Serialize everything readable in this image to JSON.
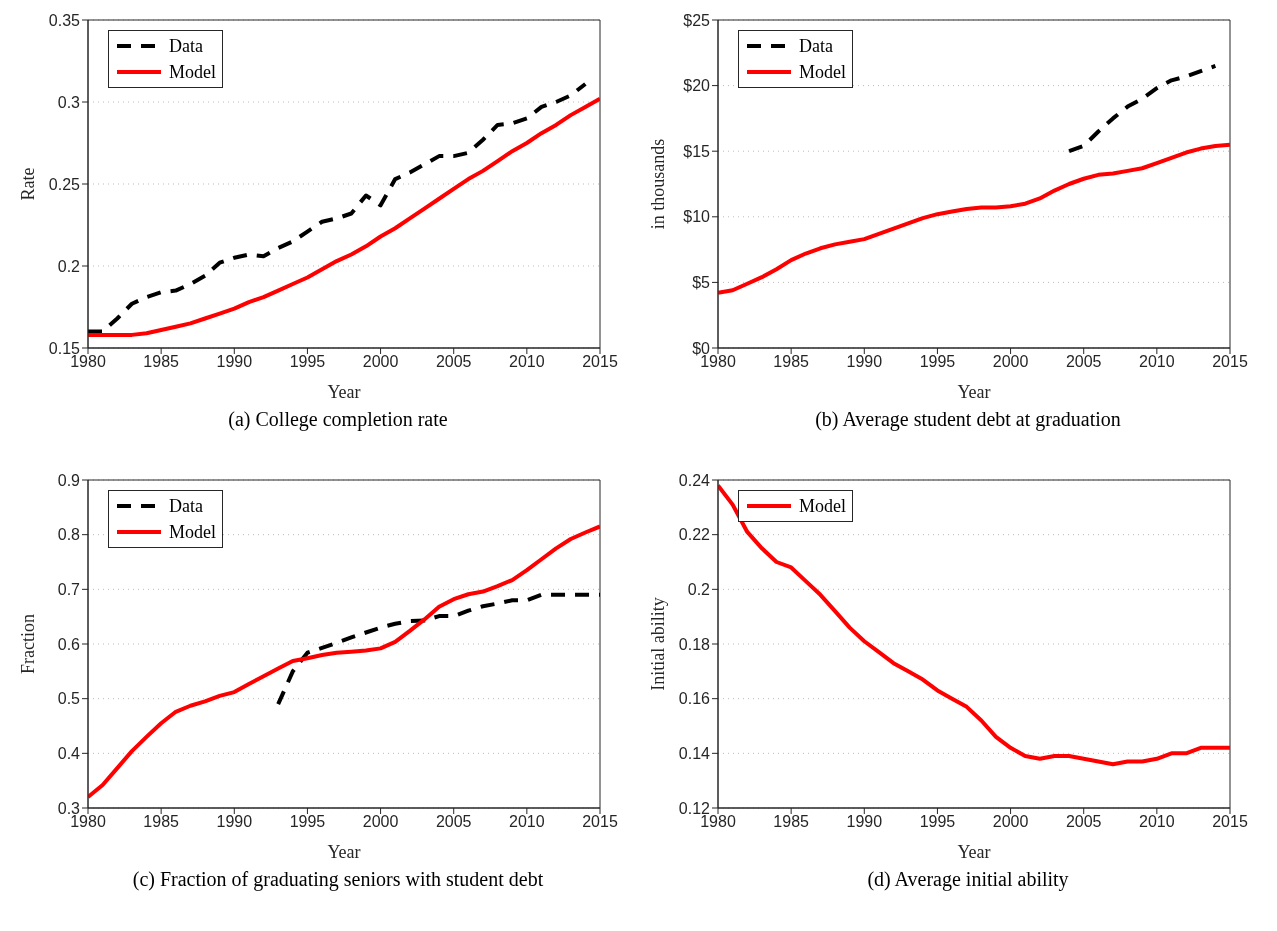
{
  "chart_data": [
    {
      "type": "line",
      "title": "(a) College completion rate",
      "xlabel": "Year",
      "ylabel": "Rate",
      "xlim": [
        1980,
        2015
      ],
      "xticks": [
        1980,
        1985,
        1990,
        1995,
        2000,
        2005,
        2010,
        2015
      ],
      "ylim": [
        0.15,
        0.35
      ],
      "yticks": [
        0.15,
        0.2,
        0.25,
        0.3,
        0.35
      ],
      "grid": "y",
      "legend": "top left",
      "series": [
        {
          "name": "Data",
          "color": "#000000",
          "line_style": "dashed",
          "x": [
            1980,
            1981,
            1982,
            1983,
            1984,
            1985,
            1986,
            1987,
            1988,
            1989,
            1990,
            1991,
            1992,
            1993,
            1994,
            1995,
            1996,
            1997,
            1998,
            1999,
            2000,
            2001,
            2002,
            2003,
            2004,
            2005,
            2006,
            2007,
            2008,
            2009,
            2010,
            2011,
            2012,
            2013,
            2014
          ],
          "values": [
            0.16,
            0.16,
            0.168,
            0.177,
            0.181,
            0.184,
            0.185,
            0.189,
            0.194,
            0.202,
            0.205,
            0.207,
            0.206,
            0.211,
            0.215,
            0.221,
            0.227,
            0.229,
            0.232,
            0.243,
            0.237,
            0.253,
            0.257,
            0.262,
            0.267,
            0.267,
            0.269,
            0.277,
            0.286,
            0.287,
            0.29,
            0.297,
            0.3,
            0.304,
            0.311
          ]
        },
        {
          "name": "Model",
          "color": "#ff0000",
          "line_style": "solid",
          "x": [
            1980,
            1981,
            1982,
            1983,
            1984,
            1985,
            1986,
            1987,
            1988,
            1989,
            1990,
            1991,
            1992,
            1993,
            1994,
            1995,
            1996,
            1997,
            1998,
            1999,
            2000,
            2001,
            2002,
            2003,
            2004,
            2005,
            2006,
            2007,
            2008,
            2009,
            2010,
            2011,
            2012,
            2013,
            2014,
            2015
          ],
          "values": [
            0.158,
            0.158,
            0.158,
            0.158,
            0.159,
            0.161,
            0.163,
            0.165,
            0.168,
            0.171,
            0.174,
            0.178,
            0.181,
            0.185,
            0.189,
            0.193,
            0.198,
            0.203,
            0.207,
            0.212,
            0.218,
            0.223,
            0.229,
            0.235,
            0.241,
            0.247,
            0.253,
            0.258,
            0.264,
            0.27,
            0.275,
            0.281,
            0.286,
            0.292,
            0.297,
            0.302
          ]
        }
      ]
    },
    {
      "type": "line",
      "title": "(b) Average student debt at graduation",
      "xlabel": "Year",
      "ylabel": "in thousands",
      "xlim": [
        1980,
        2015
      ],
      "xticks": [
        1980,
        1985,
        1990,
        1995,
        2000,
        2005,
        2010,
        2015
      ],
      "ylim": [
        0,
        25
      ],
      "yticks": [
        {
          "value": 0,
          "label": "$0"
        },
        {
          "value": 5,
          "label": "$5"
        },
        {
          "value": 10,
          "label": "$10"
        },
        {
          "value": 15,
          "label": "$15"
        },
        {
          "value": 20,
          "label": "$20"
        },
        {
          "value": 25,
          "label": "$25"
        }
      ],
      "grid": "y",
      "legend": "top left",
      "series": [
        {
          "name": "Data",
          "color": "#000000",
          "line_style": "dashed",
          "x": [
            2004,
            2005,
            2006,
            2007,
            2008,
            2009,
            2010,
            2011,
            2012,
            2013,
            2014
          ],
          "values": [
            15.0,
            15.4,
            16.5,
            17.5,
            18.4,
            19.0,
            19.8,
            20.4,
            20.7,
            21.1,
            21.5
          ]
        },
        {
          "name": "Model",
          "color": "#ff0000",
          "line_style": "solid",
          "x": [
            1980,
            1981,
            1982,
            1983,
            1984,
            1985,
            1986,
            1987,
            1988,
            1989,
            1990,
            1991,
            1992,
            1993,
            1994,
            1995,
            1996,
            1997,
            1998,
            1999,
            2000,
            2001,
            2002,
            2003,
            2004,
            2005,
            2006,
            2007,
            2008,
            2009,
            2010,
            2011,
            2012,
            2013,
            2014,
            2015
          ],
          "values": [
            4.2,
            4.4,
            4.9,
            5.4,
            6.0,
            6.7,
            7.2,
            7.6,
            7.9,
            8.1,
            8.3,
            8.7,
            9.1,
            9.5,
            9.9,
            10.2,
            10.4,
            10.6,
            10.7,
            10.7,
            10.8,
            11.0,
            11.4,
            12.0,
            12.5,
            12.9,
            13.2,
            13.3,
            13.5,
            13.7,
            14.1,
            14.5,
            14.9,
            15.2,
            15.4,
            15.5
          ]
        }
      ]
    },
    {
      "type": "line",
      "title": "(c) Fraction of graduating seniors with student debt",
      "xlabel": "Year",
      "ylabel": "Fraction",
      "xlim": [
        1980,
        2015
      ],
      "xticks": [
        1980,
        1985,
        1990,
        1995,
        2000,
        2005,
        2010,
        2015
      ],
      "ylim": [
        0.3,
        0.9
      ],
      "yticks": [
        0.3,
        0.4,
        0.5,
        0.6,
        0.7,
        0.8,
        0.9
      ],
      "grid": "y",
      "legend": "top left",
      "series": [
        {
          "name": "Data",
          "color": "#000000",
          "line_style": "dashed",
          "x": [
            1993,
            1994,
            1995,
            1996,
            1997,
            1998,
            1999,
            2000,
            2001,
            2002,
            2003,
            2004,
            2005,
            2006,
            2007,
            2008,
            2009,
            2010,
            2011,
            2012,
            2013,
            2014,
            2015
          ],
          "values": [
            0.49,
            0.55,
            0.584,
            0.593,
            0.602,
            0.612,
            0.621,
            0.63,
            0.637,
            0.642,
            0.643,
            0.651,
            0.651,
            0.661,
            0.669,
            0.674,
            0.68,
            0.68,
            0.69,
            0.69,
            0.69,
            0.69,
            0.69
          ]
        },
        {
          "name": "Model",
          "color": "#ff0000",
          "line_style": "solid",
          "x": [
            1980,
            1981,
            1982,
            1983,
            1984,
            1985,
            1986,
            1987,
            1988,
            1989,
            1990,
            1991,
            1992,
            1993,
            1994,
            1995,
            1996,
            1997,
            1998,
            1999,
            2000,
            2001,
            2002,
            2003,
            2004,
            2005,
            2006,
            2007,
            2008,
            2009,
            2010,
            2011,
            2012,
            2013,
            2014,
            2015
          ],
          "values": [
            0.32,
            0.342,
            0.373,
            0.404,
            0.43,
            0.455,
            0.476,
            0.487,
            0.495,
            0.505,
            0.512,
            0.527,
            0.541,
            0.555,
            0.569,
            0.574,
            0.58,
            0.584,
            0.586,
            0.588,
            0.592,
            0.604,
            0.624,
            0.645,
            0.668,
            0.682,
            0.691,
            0.696,
            0.706,
            0.717,
            0.735,
            0.755,
            0.775,
            0.792,
            0.804,
            0.815
          ]
        }
      ]
    },
    {
      "type": "line",
      "title": "(d) Average initial ability",
      "xlabel": "Year",
      "ylabel": "Initial ability",
      "xlim": [
        1980,
        2015
      ],
      "xticks": [
        1980,
        1985,
        1990,
        1995,
        2000,
        2005,
        2010,
        2015
      ],
      "ylim": [
        0.12,
        0.24
      ],
      "yticks": [
        0.12,
        0.14,
        0.16,
        0.18,
        0.2,
        0.22,
        0.24
      ],
      "grid": "y",
      "legend": "top left",
      "series": [
        {
          "name": "Model",
          "color": "#ff0000",
          "line_style": "solid",
          "x": [
            1980,
            1981,
            1982,
            1983,
            1984,
            1985,
            1986,
            1987,
            1988,
            1989,
            1990,
            1991,
            1992,
            1993,
            1994,
            1995,
            1996,
            1997,
            1998,
            1999,
            2000,
            2001,
            2002,
            2003,
            2004,
            2005,
            2006,
            2007,
            2008,
            2009,
            2010,
            2011,
            2012,
            2013,
            2014,
            2015
          ],
          "values": [
            0.238,
            0.231,
            0.221,
            0.215,
            0.21,
            0.208,
            0.203,
            0.198,
            0.192,
            0.186,
            0.181,
            0.177,
            0.173,
            0.17,
            0.167,
            0.163,
            0.16,
            0.157,
            0.152,
            0.146,
            0.142,
            0.139,
            0.138,
            0.139,
            0.139,
            0.138,
            0.137,
            0.136,
            0.137,
            0.137,
            0.138,
            0.14,
            0.14,
            0.142,
            0.142,
            0.142
          ]
        }
      ]
    }
  ]
}
